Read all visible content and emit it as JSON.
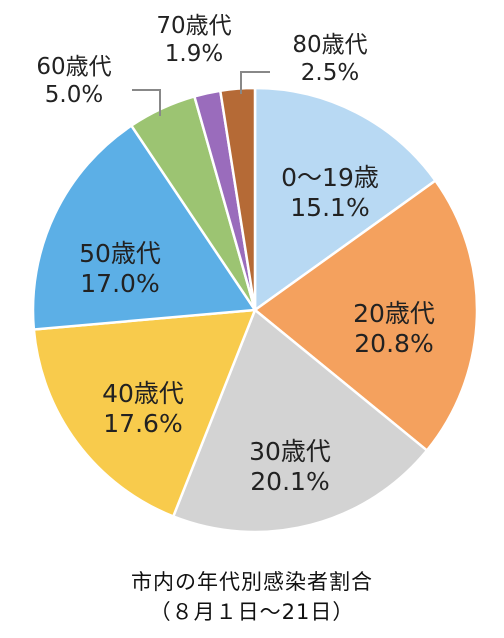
{
  "chart_data": {
    "type": "pie",
    "categories": [
      "0〜19歳",
      "20歳代",
      "30歳代",
      "40歳代",
      "50歳代",
      "60歳代",
      "70歳代",
      "80歳代"
    ],
    "values": [
      15.1,
      20.8,
      20.1,
      17.6,
      17.0,
      5.0,
      1.9,
      2.5
    ],
    "value_labels": [
      "15.1%",
      "20.8%",
      "20.1%",
      "17.6%",
      "17.0%",
      "5.0%",
      "1.9%",
      "2.5%"
    ],
    "colors": [
      "#b8d9f3",
      "#f4a15e",
      "#d3d3d3",
      "#f8cb4c",
      "#5cafe6",
      "#9cc472",
      "#9a6cbc",
      "#b56a36"
    ],
    "start": "12 o'clock",
    "direction": "clockwise",
    "legend": "none",
    "caption_lines": [
      "市内の年代別感染者割合",
      "（８月１日〜21日）"
    ]
  }
}
